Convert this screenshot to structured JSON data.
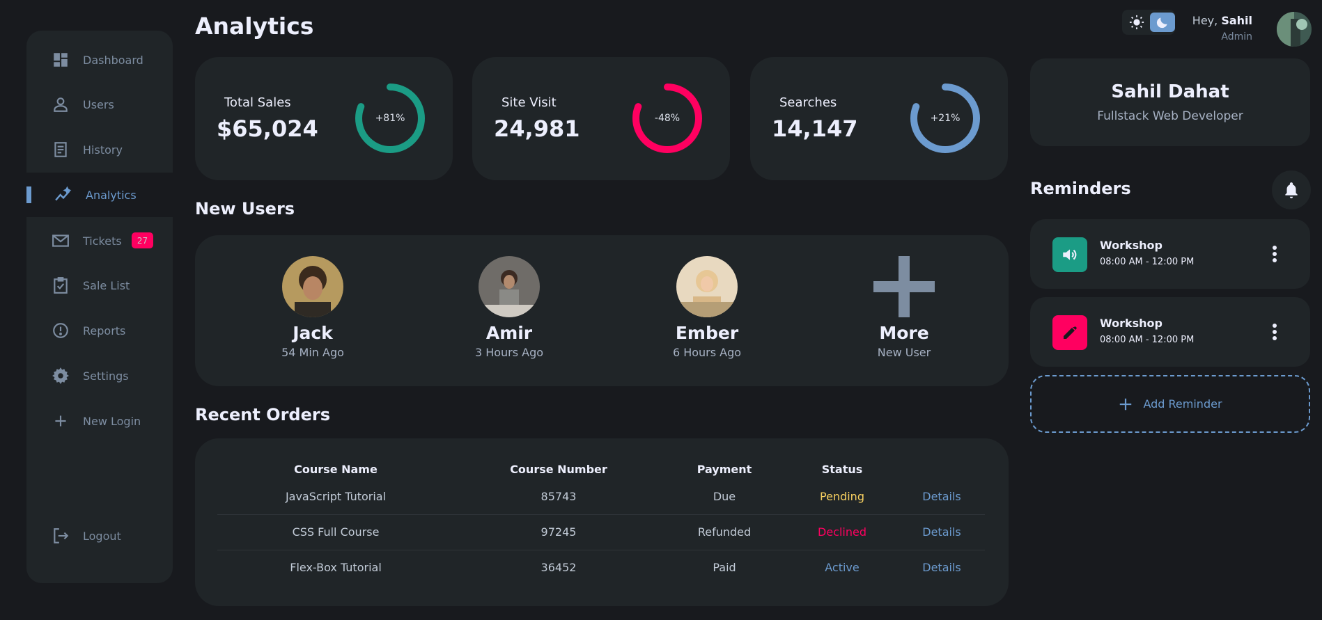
{
  "sidebar": {
    "items": [
      {
        "label": "Dashboard",
        "icon": "dashboard-icon"
      },
      {
        "label": "Users",
        "icon": "user-icon"
      },
      {
        "label": "History",
        "icon": "receipt-icon"
      },
      {
        "label": "Analytics",
        "icon": "insights-icon",
        "active": true
      },
      {
        "label": "Tickets",
        "icon": "mail-icon",
        "badge": "27"
      },
      {
        "label": "Sale List",
        "icon": "clipboard-check-icon"
      },
      {
        "label": "Reports",
        "icon": "alert-circle-icon"
      },
      {
        "label": "Settings",
        "icon": "gear-icon"
      },
      {
        "label": "New Login",
        "icon": "plus-icon"
      }
    ],
    "logout": "Logout"
  },
  "header": {
    "title": "Analytics"
  },
  "stats": [
    {
      "label": "Total Sales",
      "value": "$65,024",
      "change": "+81%",
      "progress": 0.81,
      "color": "#1b9c85"
    },
    {
      "label": "Site Visit",
      "value": "24,981",
      "change": "-48%",
      "progress": 0.81,
      "color": "#ff0060"
    },
    {
      "label": "Searches",
      "value": "14,147",
      "change": "+21%",
      "progress": 0.81,
      "color": "#6c9bcf"
    }
  ],
  "new_users": {
    "title": "New Users",
    "users": [
      {
        "name": "Jack",
        "time": "54 Min Ago"
      },
      {
        "name": "Amir",
        "time": "3 Hours Ago"
      },
      {
        "name": "Ember",
        "time": "6 Hours Ago"
      },
      {
        "name": "More",
        "time": "New User"
      }
    ]
  },
  "orders": {
    "title": "Recent Orders",
    "columns": [
      "Course Name",
      "Course Number",
      "Payment",
      "Status"
    ],
    "rows": [
      {
        "name": "JavaScript Tutorial",
        "number": "85743",
        "payment": "Due",
        "status": "Pending",
        "details": "Details"
      },
      {
        "name": "CSS Full Course",
        "number": "97245",
        "payment": "Refunded",
        "status": "Declined",
        "details": "Details"
      },
      {
        "name": "Flex-Box Tutorial",
        "number": "36452",
        "payment": "Paid",
        "status": "Active",
        "details": "Details"
      }
    ]
  },
  "user_menu": {
    "greeting": "Hey, ",
    "name": "Sahil",
    "role": "Admin"
  },
  "profile": {
    "name": "Sahil Dahat",
    "role": "Fullstack Web Developer"
  },
  "reminders": {
    "title": "Reminders",
    "items": [
      {
        "title": "Workshop",
        "time": "08:00 AM - 12:00 PM",
        "icon": "volume-icon",
        "color": "#1b9c85"
      },
      {
        "title": "Workshop",
        "time": "08:00 AM - 12:00 PM",
        "icon": "pencil-icon",
        "color": "#ff0060"
      }
    ],
    "add_label": "Add Reminder"
  },
  "colors": {
    "accent": "#6c9bcf",
    "success": "#1b9c85",
    "danger": "#ff0060",
    "warning": "#f7d060"
  }
}
